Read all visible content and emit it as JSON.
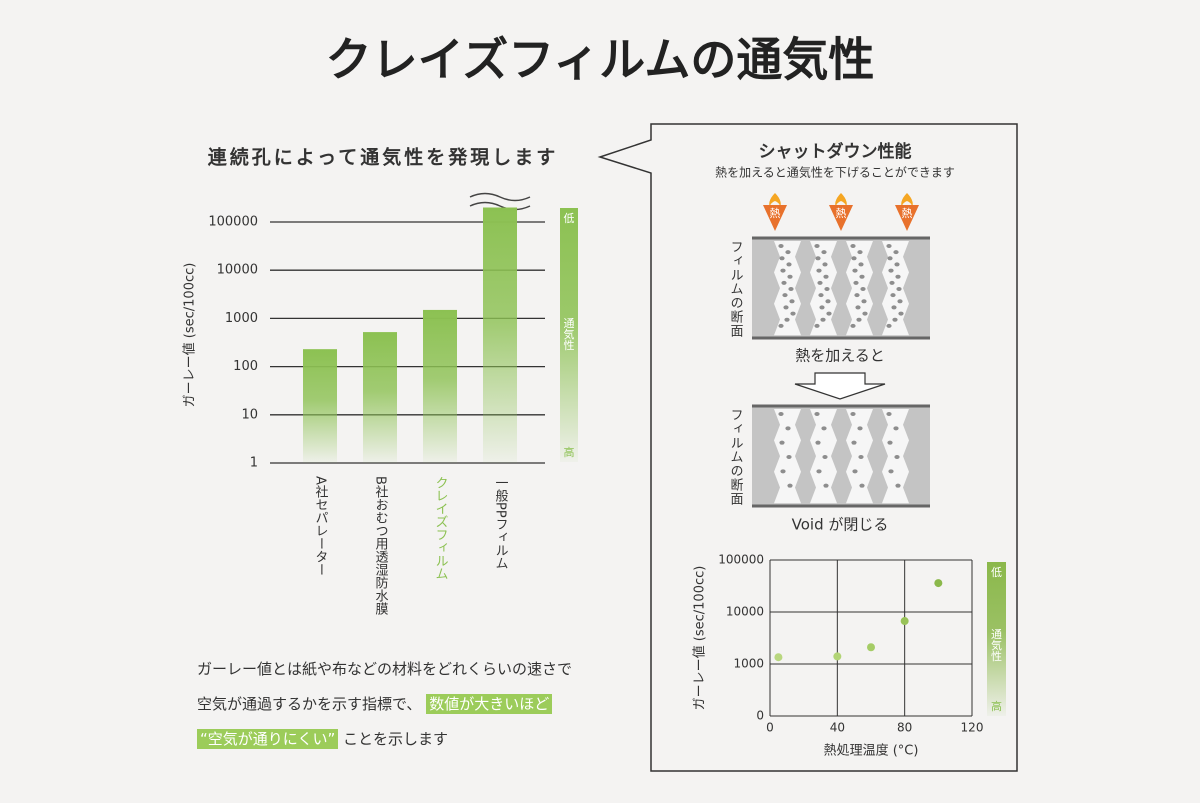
{
  "title": "クレイズフィルムの通気性",
  "left_heading": "連続孔によって通気性を発現します",
  "note": {
    "lines": [
      "ガーレー値とは紙や布などの材料をどれくらいの速さで",
      "空気が通過するかを示す指標で、"
    ],
    "highlight1": "数値が大きいほど",
    "highlight2": "“空気が通りにくい”",
    "tail": "ことを示します"
  },
  "right_panel": {
    "heading": "シャットダウン性能",
    "subheading": "熱を加えると通気性を下げることができます",
    "heat_icons": [
      "熱",
      "熱",
      "熱"
    ],
    "section_label_1": "フィルムの断面",
    "step_1": "熱を加えると",
    "section_label_2": "フィルムの断面",
    "step_2": "Void が閉じる"
  },
  "chart_data": [
    {
      "type": "bar",
      "y_label": "ガーレー値 (sec/100cc)",
      "categories": [
        "A社セパレーター",
        "B社おむつ用透湿防水膜",
        "クレイズフィルム",
        "一般PPフィルム"
      ],
      "values": [
        230,
        520,
        1500,
        200000
      ],
      "color": "#8cc152",
      "label_colors": [
        "#333333",
        "#333333",
        "#8cc152",
        "#333333"
      ],
      "log_scale": true,
      "ylim": [
        1,
        200000
      ],
      "yticks": [
        1,
        10,
        100,
        1000,
        10000,
        100000
      ],
      "grid": true,
      "scale_legend": {
        "top": "低",
        "middle": "通気性",
        "bottom": "高"
      }
    },
    {
      "type": "scatter",
      "x_label": "熱処理温度 (°C)",
      "y_label": "ガーレー値 (sec/100cc)",
      "x": [
        5,
        40,
        60,
        80,
        100
      ],
      "values": [
        1350,
        1400,
        2100,
        6700,
        36000
      ],
      "colors": [
        "#b9d77f",
        "#b2d476",
        "#a5cc66",
        "#98c258",
        "#8bb84b"
      ],
      "xlim": [
        0,
        120
      ],
      "xticks": [
        0,
        40,
        80,
        120
      ],
      "log_scale": true,
      "ylim": [
        100,
        100000
      ],
      "yticks": [
        {
          "value": 100,
          "label": "0"
        },
        1000,
        10000,
        100000
      ],
      "grid": true,
      "scale_legend": {
        "top": "低",
        "middle": "通気性",
        "bottom": "高"
      }
    }
  ]
}
